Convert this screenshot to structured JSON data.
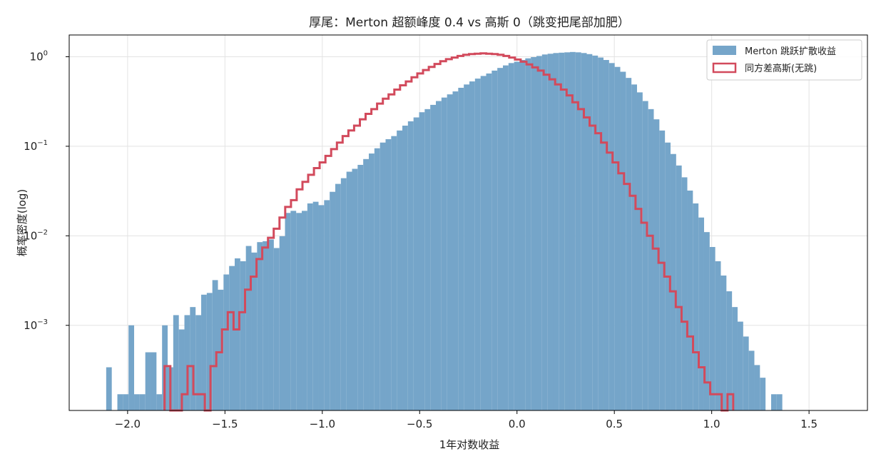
{
  "chart_data": {
    "type": "bar",
    "title": "厚尾：Merton 超额峰度 0.4 vs 高斯 0（跳变把尾部加肥）",
    "xlabel": "1年对数收益",
    "ylabel": "概率密度(log)",
    "xlim": [
      -2.3,
      1.8
    ],
    "ylim": [
      0.000112,
      1.75
    ],
    "y_scale": "log",
    "grid": true,
    "legend_position": "top-right",
    "colors": {
      "merton": "#75a5c9",
      "gauss": "#d24a5c"
    },
    "x_ticks": [
      {
        "value": -2.0,
        "label": "−2.0"
      },
      {
        "value": -1.5,
        "label": "−1.5"
      },
      {
        "value": -1.0,
        "label": "−1.0"
      },
      {
        "value": -0.5,
        "label": "−0.5"
      },
      {
        "value": 0.0,
        "label": "0.0"
      },
      {
        "value": 0.5,
        "label": "0.5"
      },
      {
        "value": 1.0,
        "label": "1.0"
      },
      {
        "value": 1.5,
        "label": "1.5"
      }
    ],
    "y_ticks": [
      {
        "value": 0.001,
        "base": "10",
        "exp": "−3"
      },
      {
        "value": 0.01,
        "base": "10",
        "exp": "−2"
      },
      {
        "value": 0.1,
        "base": "10",
        "exp": "−1"
      },
      {
        "value": 1,
        "base": "10",
        "exp": "0"
      }
    ],
    "series": [
      {
        "name": "Merton 跳跃扩散收益",
        "style": "bar",
        "bin_width": 0.0287,
        "x_start": -2.11,
        "values": [
          0.00034,
          null,
          0.00017,
          0.00017,
          0.001,
          0.00017,
          0.00017,
          0.0005,
          0.0005,
          0.00017,
          0.001,
          0.00034,
          0.0013,
          0.0009,
          0.0013,
          0.0016,
          0.0013,
          0.0022,
          0.0023,
          0.0032,
          0.0025,
          0.0037,
          0.0046,
          0.0056,
          0.0052,
          0.0077,
          0.0065,
          0.0085,
          0.0087,
          0.0091,
          0.0073,
          0.0099,
          0.018,
          0.019,
          0.018,
          0.019,
          0.023,
          0.024,
          0.022,
          0.025,
          0.031,
          0.038,
          0.044,
          0.052,
          0.056,
          0.062,
          0.072,
          0.083,
          0.095,
          0.11,
          0.12,
          0.13,
          0.15,
          0.17,
          0.19,
          0.21,
          0.24,
          0.26,
          0.29,
          0.32,
          0.35,
          0.38,
          0.41,
          0.45,
          0.49,
          0.53,
          0.57,
          0.61,
          0.65,
          0.7,
          0.75,
          0.8,
          0.85,
          0.88,
          0.92,
          0.96,
          0.99,
          1.02,
          1.06,
          1.08,
          1.1,
          1.11,
          1.12,
          1.13,
          1.12,
          1.1,
          1.07,
          1.03,
          0.98,
          0.92,
          0.85,
          0.77,
          0.68,
          0.58,
          0.49,
          0.4,
          0.32,
          0.26,
          0.2,
          0.15,
          0.11,
          0.082,
          0.061,
          0.045,
          0.032,
          0.023,
          0.016,
          0.011,
          0.0075,
          0.0052,
          0.0036,
          0.0024,
          0.0016,
          0.0011,
          0.00075,
          0.00052,
          0.00036,
          0.00026,
          null,
          0.00017,
          0.00017
        ]
      },
      {
        "name": "同方差高斯(无跳)",
        "style": "step",
        "bin_width": 0.0295,
        "x_start": -1.81,
        "values": [
          0.00035,
          null,
          null,
          0.00017,
          0.00035,
          0.00017,
          0.00017,
          null,
          0.00035,
          0.0005,
          0.0009,
          0.0014,
          0.0009,
          0.0014,
          0.0025,
          0.0035,
          0.0055,
          0.0074,
          0.0095,
          0.012,
          0.016,
          0.021,
          0.025,
          0.033,
          0.04,
          0.048,
          0.057,
          0.066,
          0.078,
          0.093,
          0.11,
          0.13,
          0.15,
          0.17,
          0.2,
          0.23,
          0.26,
          0.3,
          0.34,
          0.38,
          0.43,
          0.48,
          0.53,
          0.59,
          0.65,
          0.71,
          0.77,
          0.83,
          0.89,
          0.94,
          0.98,
          1.02,
          1.05,
          1.07,
          1.08,
          1.09,
          1.08,
          1.07,
          1.05,
          1.02,
          0.98,
          0.93,
          0.88,
          0.82,
          0.76,
          0.7,
          0.63,
          0.56,
          0.49,
          0.43,
          0.37,
          0.31,
          0.26,
          0.21,
          0.17,
          0.14,
          0.11,
          0.085,
          0.066,
          0.05,
          0.038,
          0.028,
          0.02,
          0.014,
          0.01,
          0.0072,
          0.005,
          0.0035,
          0.0024,
          0.0016,
          0.0011,
          0.00075,
          0.0005,
          0.00034,
          0.00023,
          0.00017,
          0.00017,
          null,
          0.00017
        ]
      }
    ]
  }
}
